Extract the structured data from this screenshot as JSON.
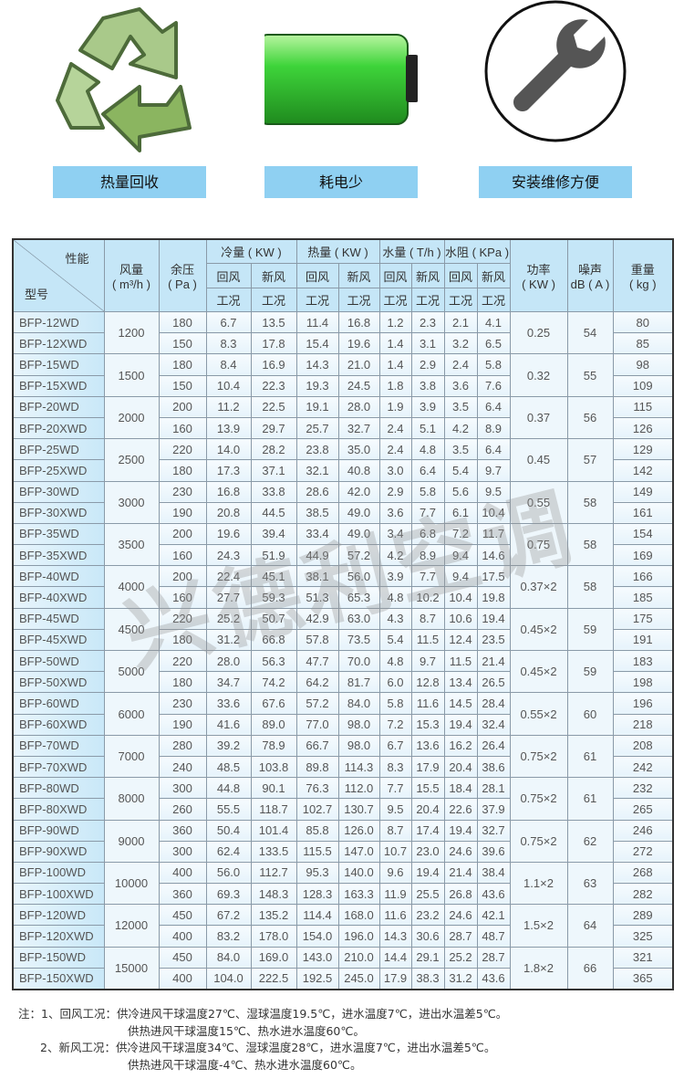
{
  "features": [
    {
      "label": "热量回收",
      "icon": "recycle-icon"
    },
    {
      "label": "耗电少",
      "icon": "battery-icon"
    },
    {
      "label": "安装维修方便",
      "icon": "wrench-icon"
    }
  ],
  "table": {
    "header": {
      "performance": "性能",
      "model": "型号",
      "airflow": "风量",
      "airflow_unit": "( m³/h )",
      "pressure": "余压",
      "pressure_unit": "( Pa )",
      "cooling": "冷量 ( KW )",
      "heating": "热量 ( KW )",
      "water_flow": "水量 ( T/h )",
      "water_resistance": "水阻 ( KPa )",
      "return_air": "回风",
      "fresh_air": "新风",
      "condition": "工况",
      "power": "功率",
      "power_unit": "( KW )",
      "noise": "噪声",
      "noise_unit": "dB ( A )",
      "weight": "重量",
      "weight_unit": "( kg )"
    },
    "groups": [
      {
        "airflow": "1200",
        "power": "0.25",
        "noise": "54",
        "rows": [
          [
            "BFP-12WD",
            "180",
            "6.7",
            "13.5",
            "11.4",
            "16.8",
            "1.2",
            "2.3",
            "2.1",
            "4.1",
            "80"
          ],
          [
            "BFP-12XWD",
            "150",
            "8.3",
            "17.8",
            "15.4",
            "19.6",
            "1.4",
            "3.1",
            "3.2",
            "6.5",
            "85"
          ]
        ]
      },
      {
        "airflow": "1500",
        "power": "0.32",
        "noise": "55",
        "rows": [
          [
            "BFP-15WD",
            "180",
            "8.4",
            "16.9",
            "14.3",
            "21.0",
            "1.4",
            "2.9",
            "2.4",
            "5.8",
            "98"
          ],
          [
            "BFP-15XWD",
            "150",
            "10.4",
            "22.3",
            "19.3",
            "24.5",
            "1.8",
            "3.8",
            "3.6",
            "7.6",
            "109"
          ]
        ]
      },
      {
        "airflow": "2000",
        "power": "0.37",
        "noise": "56",
        "rows": [
          [
            "BFP-20WD",
            "200",
            "11.2",
            "22.5",
            "19.1",
            "28.0",
            "1.9",
            "3.9",
            "3.5",
            "6.4",
            "115"
          ],
          [
            "BFP-20XWD",
            "160",
            "13.9",
            "29.7",
            "25.7",
            "32.7",
            "2.4",
            "5.1",
            "4.2",
            "8.9",
            "126"
          ]
        ]
      },
      {
        "airflow": "2500",
        "power": "0.45",
        "noise": "57",
        "rows": [
          [
            "BFP-25WD",
            "220",
            "14.0",
            "28.2",
            "23.8",
            "35.0",
            "2.4",
            "4.8",
            "3.5",
            "6.4",
            "129"
          ],
          [
            "BFP-25XWD",
            "180",
            "17.3",
            "37.1",
            "32.1",
            "40.8",
            "3.0",
            "6.4",
            "5.4",
            "9.7",
            "142"
          ]
        ]
      },
      {
        "airflow": "3000",
        "power": "0.55",
        "noise": "58",
        "rows": [
          [
            "BFP-30WD",
            "230",
            "16.8",
            "33.8",
            "28.6",
            "42.0",
            "2.9",
            "5.8",
            "5.6",
            "9.5",
            "149"
          ],
          [
            "BFP-30XWD",
            "190",
            "20.8",
            "44.5",
            "38.5",
            "49.0",
            "3.6",
            "7.7",
            "6.1",
            "10.4",
            "161"
          ]
        ]
      },
      {
        "airflow": "3500",
        "power": "0.75",
        "noise": "58",
        "rows": [
          [
            "BFP-35WD",
            "200",
            "19.6",
            "39.4",
            "33.4",
            "49.0",
            "3.4",
            "6.8",
            "7.2",
            "11.7",
            "154"
          ],
          [
            "BFP-35XWD",
            "160",
            "24.3",
            "51.9",
            "44.9",
            "57.2",
            "4.2",
            "8.9",
            "9.4",
            "14.6",
            "169"
          ]
        ]
      },
      {
        "airflow": "4000",
        "power": "0.37×2",
        "noise": "58",
        "rows": [
          [
            "BFP-40WD",
            "200",
            "22.4",
            "45.1",
            "38.1",
            "56.0",
            "3.9",
            "7.7",
            "9.4",
            "17.5",
            "166"
          ],
          [
            "BFP-40XWD",
            "160",
            "27.7",
            "59.3",
            "51.3",
            "65.3",
            "4.8",
            "10.2",
            "10.4",
            "19.8",
            "185"
          ]
        ]
      },
      {
        "airflow": "4500",
        "power": "0.45×2",
        "noise": "59",
        "rows": [
          [
            "BFP-45WD",
            "220",
            "25.2",
            "50.7",
            "42.9",
            "63.0",
            "4.3",
            "8.7",
            "10.6",
            "19.4",
            "175"
          ],
          [
            "BFP-45XWD",
            "180",
            "31.2",
            "66.8",
            "57.8",
            "73.5",
            "5.4",
            "11.5",
            "12.4",
            "23.5",
            "191"
          ]
        ]
      },
      {
        "airflow": "5000",
        "power": "0.45×2",
        "noise": "59",
        "rows": [
          [
            "BFP-50WD",
            "220",
            "28.0",
            "56.3",
            "47.7",
            "70.0",
            "4.8",
            "9.7",
            "11.5",
            "21.4",
            "183"
          ],
          [
            "BFP-50XWD",
            "180",
            "34.7",
            "74.2",
            "64.2",
            "81.7",
            "6.0",
            "12.8",
            "13.4",
            "26.5",
            "198"
          ]
        ]
      },
      {
        "airflow": "6000",
        "power": "0.55×2",
        "noise": "60",
        "rows": [
          [
            "BFP-60WD",
            "230",
            "33.6",
            "67.6",
            "57.2",
            "84.0",
            "5.8",
            "11.6",
            "14.5",
            "28.4",
            "196"
          ],
          [
            "BFP-60XWD",
            "190",
            "41.6",
            "89.0",
            "77.0",
            "98.0",
            "7.2",
            "15.3",
            "19.4",
            "32.4",
            "218"
          ]
        ]
      },
      {
        "airflow": "7000",
        "power": "0.75×2",
        "noise": "61",
        "rows": [
          [
            "BFP-70WD",
            "280",
            "39.2",
            "78.9",
            "66.7",
            "98.0",
            "6.7",
            "13.6",
            "16.2",
            "26.4",
            "208"
          ],
          [
            "BFP-70XWD",
            "240",
            "48.5",
            "103.8",
            "89.8",
            "114.3",
            "8.3",
            "17.9",
            "20.4",
            "38.6",
            "242"
          ]
        ]
      },
      {
        "airflow": "8000",
        "power": "0.75×2",
        "noise": "61",
        "rows": [
          [
            "BFP-80WD",
            "300",
            "44.8",
            "90.1",
            "76.3",
            "112.0",
            "7.7",
            "15.5",
            "18.4",
            "28.1",
            "232"
          ],
          [
            "BFP-80XWD",
            "260",
            "55.5",
            "118.7",
            "102.7",
            "130.7",
            "9.5",
            "20.4",
            "22.6",
            "37.9",
            "265"
          ]
        ]
      },
      {
        "airflow": "9000",
        "power": "0.75×2",
        "noise": "62",
        "rows": [
          [
            "BFP-90WD",
            "360",
            "50.4",
            "101.4",
            "85.8",
            "126.0",
            "8.7",
            "17.4",
            "19.4",
            "32.7",
            "246"
          ],
          [
            "BFP-90XWD",
            "300",
            "62.4",
            "133.5",
            "115.5",
            "147.0",
            "10.7",
            "23.0",
            "24.6",
            "39.6",
            "272"
          ]
        ]
      },
      {
        "airflow": "10000",
        "power": "1.1×2",
        "noise": "63",
        "rows": [
          [
            "BFP-100WD",
            "400",
            "56.0",
            "112.7",
            "95.3",
            "140.0",
            "9.6",
            "19.4",
            "21.4",
            "38.4",
            "268"
          ],
          [
            "BFP-100XWD",
            "360",
            "69.3",
            "148.3",
            "128.3",
            "163.3",
            "11.9",
            "25.5",
            "26.8",
            "43.6",
            "282"
          ]
        ]
      },
      {
        "airflow": "12000",
        "power": "1.5×2",
        "noise": "64",
        "rows": [
          [
            "BFP-120WD",
            "450",
            "67.2",
            "135.2",
            "114.4",
            "168.0",
            "11.6",
            "23.2",
            "24.6",
            "42.1",
            "289"
          ],
          [
            "BFP-120XWD",
            "400",
            "83.2",
            "178.0",
            "154.0",
            "196.0",
            "14.3",
            "30.6",
            "28.7",
            "48.7",
            "325"
          ]
        ]
      },
      {
        "airflow": "15000",
        "power": "1.8×2",
        "noise": "66",
        "rows": [
          [
            "BFP-150WD",
            "450",
            "84.0",
            "169.0",
            "143.0",
            "210.0",
            "14.4",
            "29.1",
            "25.2",
            "28.7",
            "321"
          ],
          [
            "BFP-150XWD",
            "400",
            "104.0",
            "222.5",
            "192.5",
            "245.0",
            "17.9",
            "38.3",
            "31.2",
            "43.6",
            "365"
          ]
        ]
      }
    ]
  },
  "notes": [
    "注：1、回风工况：供冷进风干球温度27℃、湿球温度19.5℃，进水温度7℃，进出水温差5℃。",
    "供热进风干球温度15℃、热水进水温度60℃。",
    "2、新风工况：供冷进风干球温度34℃、湿球温度28℃，进水温度7℃，进出水温差5℃。",
    "供热进风干球温度-4℃、热水进水温度60℃。"
  ],
  "watermark": "兴德利空调",
  "colors": {
    "label_bg": "#8fd0f2",
    "header_bg": "#c5e6f7",
    "battery_green": "#3ed43a",
    "icon_gray": "#555555",
    "recycle_green": "#8bb560"
  }
}
